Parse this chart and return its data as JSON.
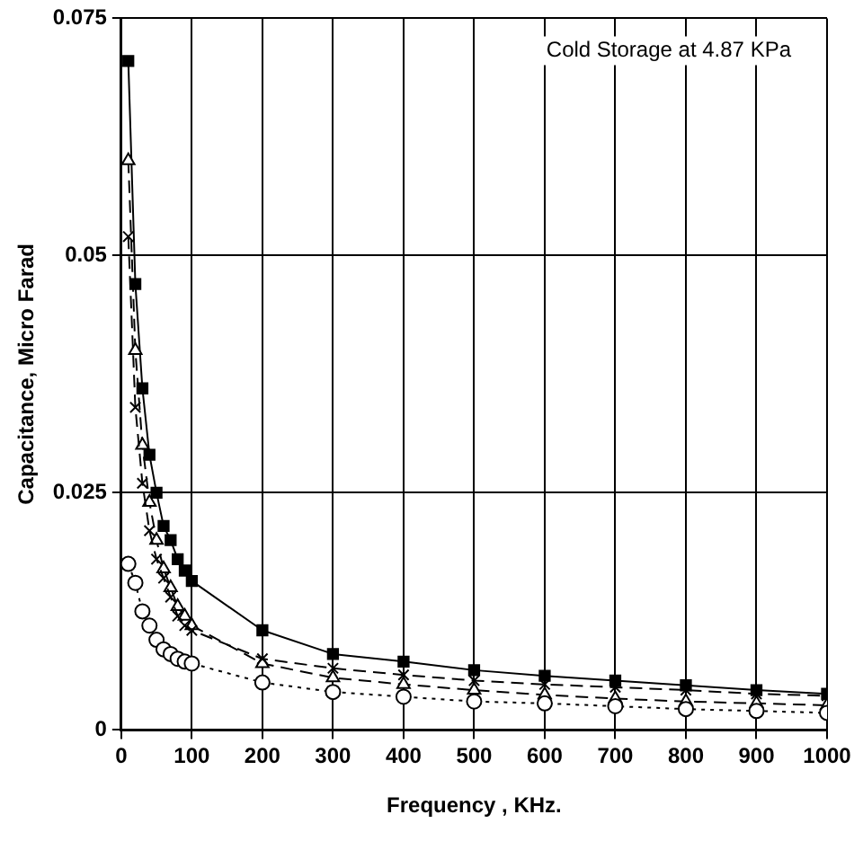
{
  "chart_data": {
    "type": "line",
    "xlabel": "Frequency , KHz.",
    "ylabel": "Capacitance, Micro Farad",
    "annotations": [
      "Cold Storage at 4.87 KPa"
    ],
    "x": [
      10,
      20,
      30,
      40,
      50,
      60,
      70,
      80,
      90,
      100,
      200,
      300,
      400,
      500,
      600,
      700,
      800,
      900,
      1000
    ],
    "series": [
      {
        "color": "#000000",
        "marker": "square",
        "line_style": "solid",
        "values": [
          0.0705,
          0.047,
          0.036,
          0.029,
          0.025,
          0.0215,
          0.02,
          0.018,
          0.0168,
          0.0157,
          0.0105,
          0.008,
          0.0072,
          0.0063,
          0.0057,
          0.0052,
          0.0047,
          0.0042,
          0.0038
        ]
      },
      {
        "color": "#000000",
        "marker": "triangle",
        "line_style": "dashed",
        "values": [
          0.06,
          0.04,
          0.03,
          0.024,
          0.02,
          0.017,
          0.015,
          0.013,
          0.012,
          0.011,
          0.007,
          0.0055,
          0.0048,
          0.0042,
          0.0037,
          0.0033,
          0.003,
          0.0028,
          0.0026
        ]
      },
      {
        "color": "#000000",
        "marker": "cross",
        "line_style": "dashed",
        "values": [
          0.052,
          0.034,
          0.026,
          0.021,
          0.018,
          0.016,
          0.014,
          0.012,
          0.011,
          0.0105,
          0.0075,
          0.0065,
          0.0058,
          0.0052,
          0.0048,
          0.0045,
          0.0042,
          0.0038,
          0.0036
        ]
      },
      {
        "color": "#000000",
        "marker": "circle",
        "line_style": "dotted",
        "values": [
          0.0175,
          0.0155,
          0.0125,
          0.011,
          0.0095,
          0.0085,
          0.008,
          0.0075,
          0.0072,
          0.007,
          0.005,
          0.004,
          0.0035,
          0.003,
          0.0028,
          0.0025,
          0.0022,
          0.002,
          0.0018
        ]
      }
    ],
    "xlim": [
      0,
      1000
    ],
    "xticks": [
      0,
      100,
      200,
      300,
      400,
      500,
      600,
      700,
      800,
      900,
      1000
    ],
    "ylim": [
      0,
      0.075
    ],
    "yticks": [
      0,
      0.025,
      0.05,
      0.075
    ],
    "grid": true,
    "legend": false
  }
}
